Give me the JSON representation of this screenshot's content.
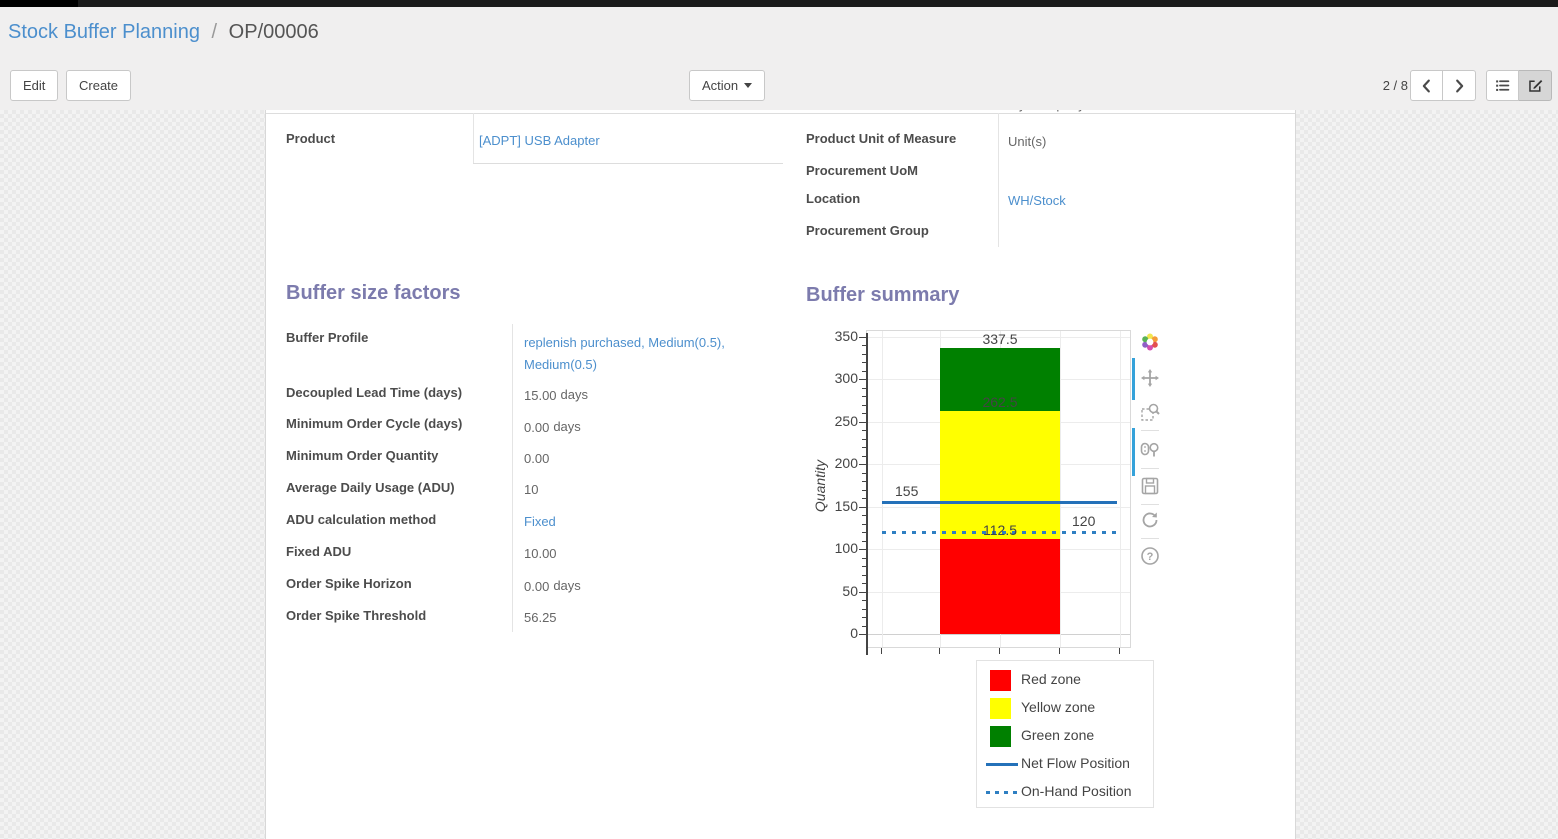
{
  "breadcrumb": {
    "parent": "Stock Buffer Planning",
    "separator": "/",
    "current": "OP/00006"
  },
  "control_panel": {
    "edit_label": "Edit",
    "create_label": "Create",
    "action_label": "Action",
    "pager": "2 / 8"
  },
  "form": {
    "clipped_value": "My Company",
    "left_fields": [
      {
        "label": "Product",
        "value": "[ADPT] USB Adapter",
        "link": true
      }
    ],
    "right_fields": [
      {
        "label": "Product Unit of Measure",
        "value": "Unit(s)",
        "link": false
      },
      {
        "label": "Procurement UoM",
        "value": "",
        "link": false
      },
      {
        "label": "Location",
        "value": "WH/Stock",
        "link": true
      },
      {
        "label": "Procurement Group",
        "value": "",
        "link": false
      }
    ],
    "sections": {
      "factors_title": "Buffer size factors",
      "summary_title": "Buffer summary"
    },
    "factors": [
      {
        "label": "Buffer Profile",
        "value": "replenish purchased, Medium(0.5), Medium(0.5)",
        "link": true
      },
      {
        "label": "Decoupled Lead Time (days)",
        "value": "15.00",
        "unit": "days"
      },
      {
        "label": "Minimum Order Cycle (days)",
        "value": "0.00",
        "unit": "days"
      },
      {
        "label": "Minimum Order Quantity",
        "value": "0.00"
      },
      {
        "label": "Average Daily Usage (ADU)",
        "value": "10"
      },
      {
        "label": "ADU calculation method",
        "value": "Fixed",
        "link": true
      },
      {
        "label": "Fixed ADU",
        "value": "10.00"
      },
      {
        "label": "Order Spike Horizon",
        "value": "0.00",
        "unit": "days"
      },
      {
        "label": "Order Spike Threshold",
        "value": "56.25"
      }
    ]
  },
  "chart_data": {
    "type": "bar",
    "title": "Buffer summary",
    "xlabel": "",
    "ylabel": "Quantity",
    "ylim": [
      0,
      350
    ],
    "ytick_step": 50,
    "minor_tick_step": 10,
    "grid": true,
    "categories": [
      ""
    ],
    "zones": [
      {
        "name": "Red zone",
        "from": 0,
        "to": 112.5,
        "color": "#ff0000"
      },
      {
        "name": "Yellow zone",
        "from": 112.5,
        "to": 262.5,
        "color": "#ffff00"
      },
      {
        "name": "Green zone",
        "from": 262.5,
        "to": 337.5,
        "color": "#008000"
      }
    ],
    "zone_labels": [
      {
        "text": "337.5",
        "value": 337.5
      },
      {
        "text": "262.5",
        "value": 262.5
      },
      {
        "text": "112.5",
        "value": 112.5
      }
    ],
    "lines": [
      {
        "name": "Net Flow Position",
        "value": 155,
        "style": "solid",
        "color": "#2471b9",
        "label": "155",
        "label_align": "left"
      },
      {
        "name": "On-Hand Position",
        "value": 120,
        "style": "dotted",
        "color": "#2e7fc2",
        "label": "120",
        "label_align": "right"
      }
    ],
    "legend": [
      {
        "label": "Red zone",
        "swatch": "box",
        "color": "#ff0000"
      },
      {
        "label": "Yellow zone",
        "swatch": "box",
        "color": "#ffff00"
      },
      {
        "label": "Green zone",
        "swatch": "box",
        "color": "#008000"
      },
      {
        "label": "Net Flow Position",
        "swatch": "line",
        "color": "#2471b9"
      },
      {
        "label": "On-Hand Position",
        "swatch": "dotted",
        "color": "#2e7fc2"
      }
    ],
    "legend_position": "bottom-right"
  },
  "modebar": {
    "icons": [
      "plotly-logo",
      "pan",
      "box-zoom",
      "zoom-in-out",
      "save",
      "reset-axes",
      "help"
    ],
    "accent_color": "#35a2da"
  },
  "colors": {
    "heading": "#7c7bad",
    "link": "#4c8fcd",
    "label": "#4c4c4c",
    "value": "#666666"
  }
}
